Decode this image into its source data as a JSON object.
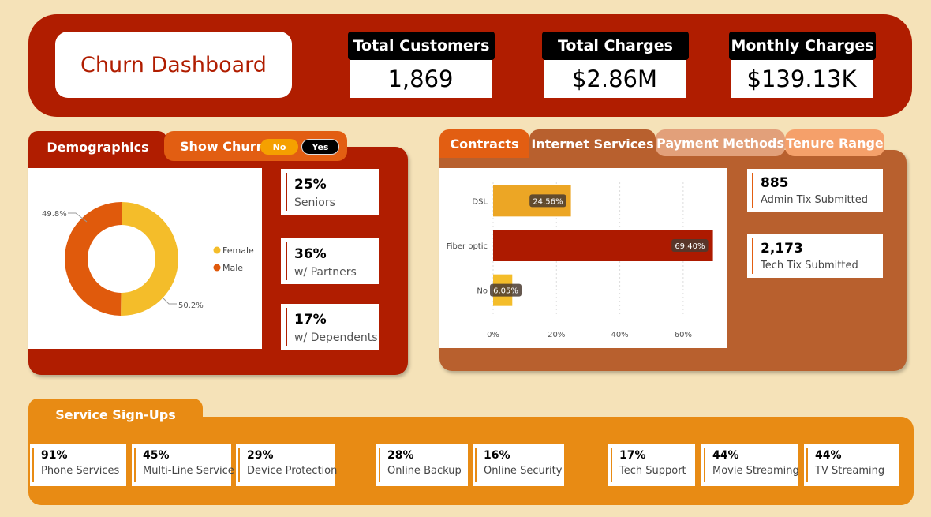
{
  "header": {
    "title": "Churn Dashboard",
    "kpis": [
      {
        "label": "Total Customers",
        "value": "1,869"
      },
      {
        "label": "Total Charges",
        "value": "$2.86M"
      },
      {
        "label": "Monthly Charges",
        "value": "$139.13K"
      }
    ]
  },
  "demographics": {
    "tab_label": "Demographics",
    "show_churn_label": "Show Churn",
    "toggle_no": "No",
    "toggle_yes": "Yes",
    "donut": {
      "male_label": "49.8%",
      "female_label": "50.2%",
      "male_value": 49.8,
      "female_value": 50.2,
      "legend_female": "Female",
      "legend_male": "Male",
      "female_color": "#f4bd2a",
      "male_color": "#e05a0c"
    },
    "stats": [
      {
        "value": "25%",
        "label": "Seniors"
      },
      {
        "value": "36%",
        "label": "w/ Partners"
      },
      {
        "value": "17%",
        "label": "w/ Dependents"
      }
    ]
  },
  "contracts": {
    "tabs": [
      "Contracts",
      "Internet Services",
      "Payment Methods",
      "Tenure Range"
    ],
    "tickets": [
      {
        "value": "885",
        "label": "Admin Tix Submitted"
      },
      {
        "value": "2,173",
        "label": "Tech Tix Submitted"
      }
    ]
  },
  "chart_data": {
    "type": "bar",
    "orientation": "horizontal",
    "categories": [
      "DSL",
      "Fiber optic",
      "No"
    ],
    "values": [
      24.56,
      69.4,
      6.05
    ],
    "data_labels": [
      "24.56%",
      "69.40%",
      "6.05%"
    ],
    "xticks": [
      "0%",
      "20%",
      "40%",
      "60%"
    ],
    "xlim": [
      0,
      70
    ],
    "colors": [
      "#eca625",
      "#ad1a00",
      "#f4bd2a"
    ]
  },
  "services": {
    "tab_label": "Service Sign-Ups",
    "items": [
      {
        "value": "91%",
        "label": "Phone Services"
      },
      {
        "value": "45%",
        "label": "Multi-Line Service"
      },
      {
        "value": "29%",
        "label": "Device Protection"
      },
      {
        "value": "28%",
        "label": "Online Backup"
      },
      {
        "value": "16%",
        "label": "Online Security"
      },
      {
        "value": "17%",
        "label": "Tech Support"
      },
      {
        "value": "44%",
        "label": "Movie Streaming"
      },
      {
        "value": "44%",
        "label": "TV Streaming"
      }
    ]
  }
}
